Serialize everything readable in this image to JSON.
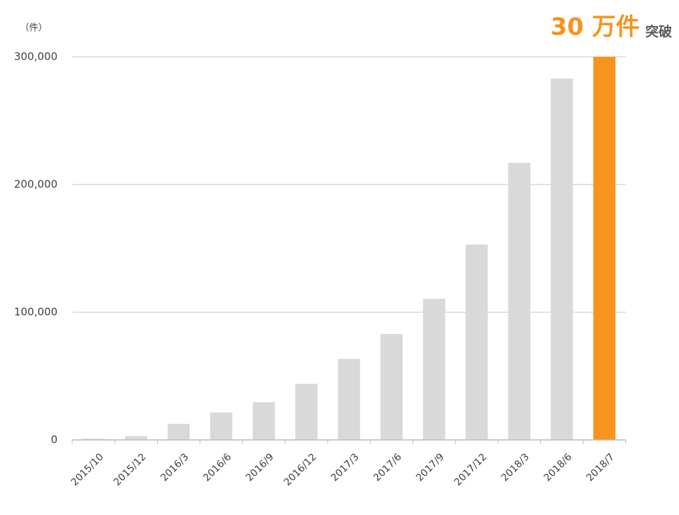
{
  "chart_data": {
    "type": "bar",
    "unit_label": "（件）",
    "annotation": {
      "main": "30 万件",
      "suffix": "突破"
    },
    "categories": [
      "2015/10",
      "2015/12",
      "2016/3",
      "2016/6",
      "2016/9",
      "2016/12",
      "2017/3",
      "2017/6",
      "2017/9",
      "2017/12",
      "2018/3",
      "2018/6",
      "2018/7"
    ],
    "values": [
      1000,
      3000,
      12500,
      21500,
      29500,
      44000,
      63500,
      83000,
      110500,
      153000,
      217000,
      283000,
      300000
    ],
    "colors": [
      "#d9d9d9",
      "#d9d9d9",
      "#d9d9d9",
      "#d9d9d9",
      "#d9d9d9",
      "#d9d9d9",
      "#d9d9d9",
      "#d9d9d9",
      "#d9d9d9",
      "#d9d9d9",
      "#d9d9d9",
      "#d9d9d9",
      "#f7931e"
    ],
    "ylim": [
      0,
      300000
    ],
    "yticks": [
      0,
      {
        "value": 100000,
        "label": "100,000"
      },
      {
        "value": 200000,
        "label": "200,000"
      },
      {
        "value": 300000,
        "label": "300,000"
      }
    ],
    "grid": true
  }
}
